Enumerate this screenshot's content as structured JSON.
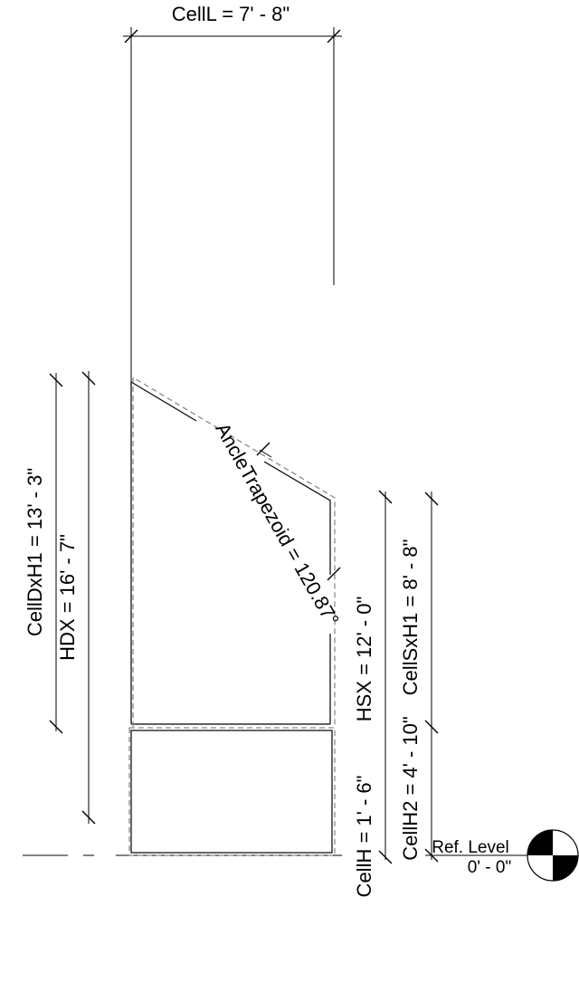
{
  "dimensions": {
    "cell_l": "CellL = 7' - 8\"",
    "cell_dx_h1": "CellDxH1 = 13' - 3\"",
    "hdx": "HDX = 16' - 7\"",
    "angle_trapezoid": "AncleTrapezoid = 120.87°",
    "hsx": "HSX = 12' - 0\"",
    "cell_sx_h1": "CellSxH1 = 8' - 8\"",
    "cell_h2": "CellH2 = 4' - 10\"",
    "cell_h": "CellH = 1' - 6\""
  },
  "level": {
    "name": "Ref. Level",
    "elevation": "0' - 0\""
  }
}
